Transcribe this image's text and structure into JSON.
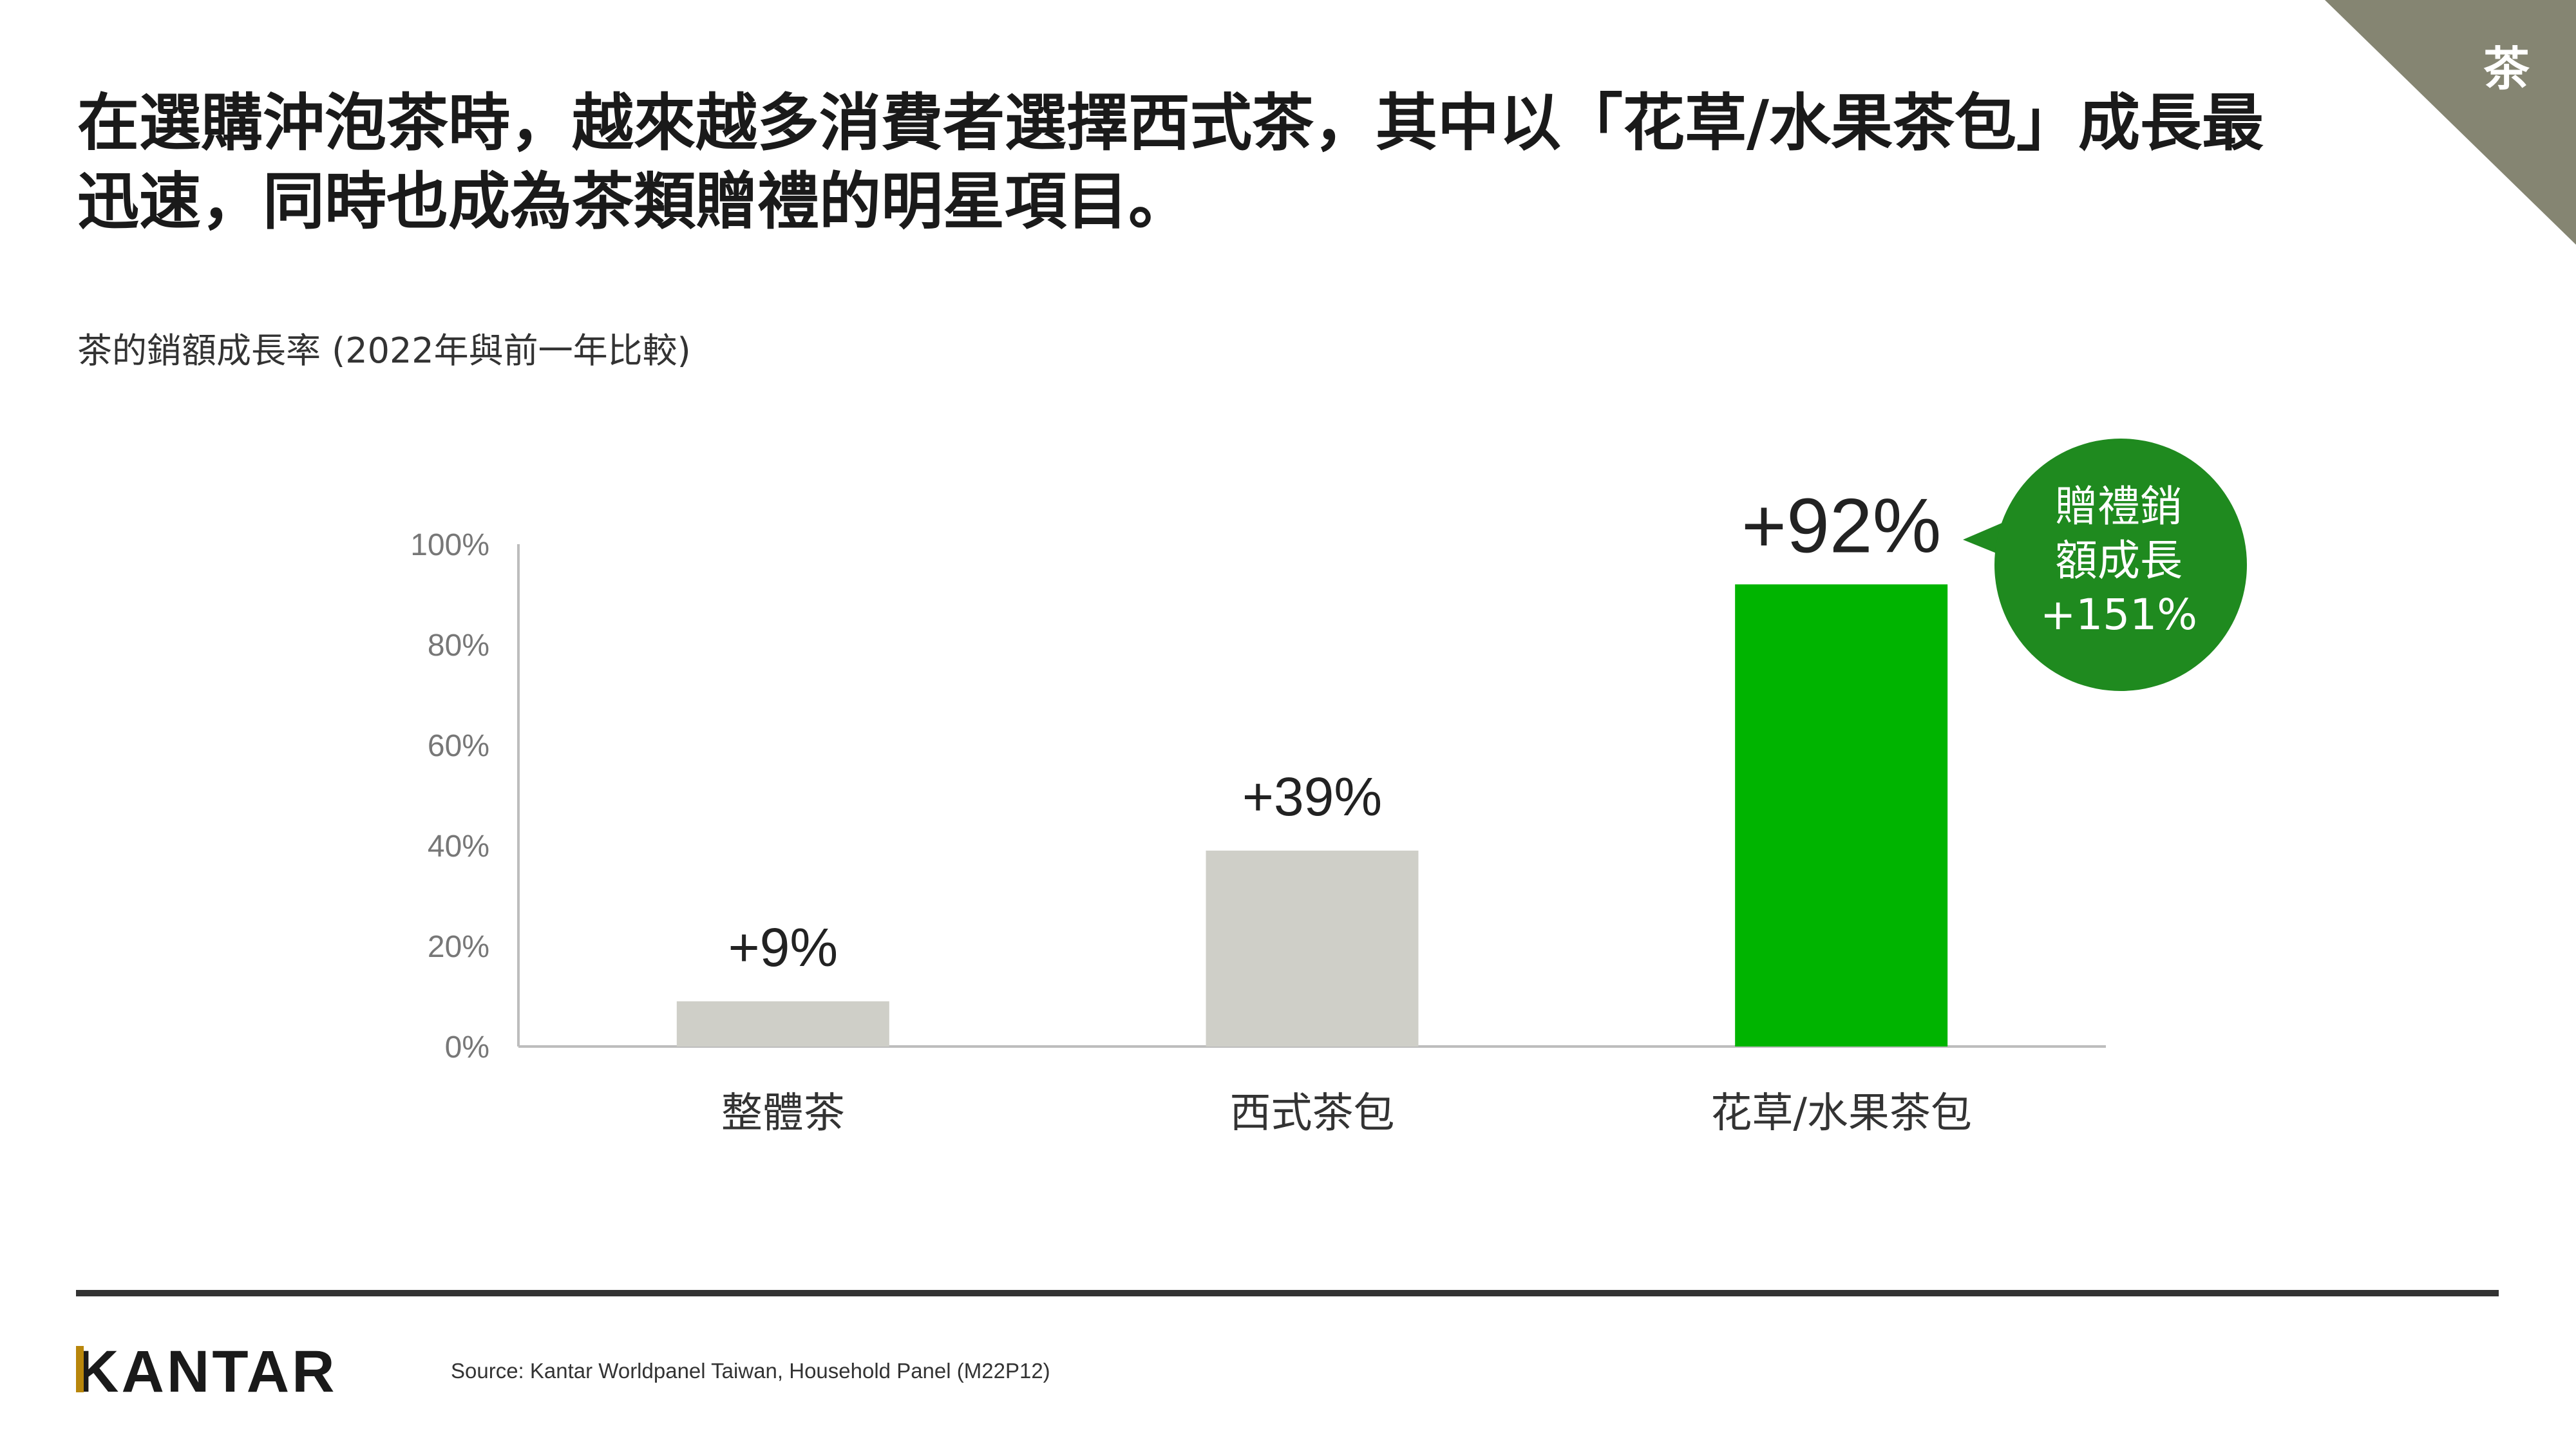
{
  "corner_label": "茶",
  "headline": {
    "line1": "在選購沖泡茶時，越來越多消費者選擇西式茶，其中以「花草/水果茶包」成長最",
    "line2": "迅速，同時也成為茶類贈禮的明星項目。"
  },
  "subtitle": "茶的銷額成長率 (2022年與前一年比較)",
  "chart_data": {
    "type": "bar",
    "categories": [
      "整體茶",
      "西式茶包",
      "花草/水果茶包"
    ],
    "values": [
      9,
      39,
      92
    ],
    "data_labels": [
      "+9%",
      "+39%",
      "+92%"
    ],
    "bar_colors": [
      "#cfcfc8",
      "#cfcfc8",
      "#00b400"
    ],
    "ylim": [
      0,
      100
    ],
    "yticks": [
      0,
      20,
      40,
      60,
      80,
      100
    ],
    "ytick_labels": [
      "0%",
      "20%",
      "40%",
      "60%",
      "80%",
      "100%"
    ],
    "grid": false
  },
  "callout": {
    "line1": "贈禮銷",
    "line2": "額成長",
    "line3": "+151%",
    "color": "#1f8a1f"
  },
  "footer": {
    "logo": "KANTAR",
    "source": "Source:  Kantar  Worldpanel  Taiwan,  Household  Panel  (M22P12)"
  }
}
